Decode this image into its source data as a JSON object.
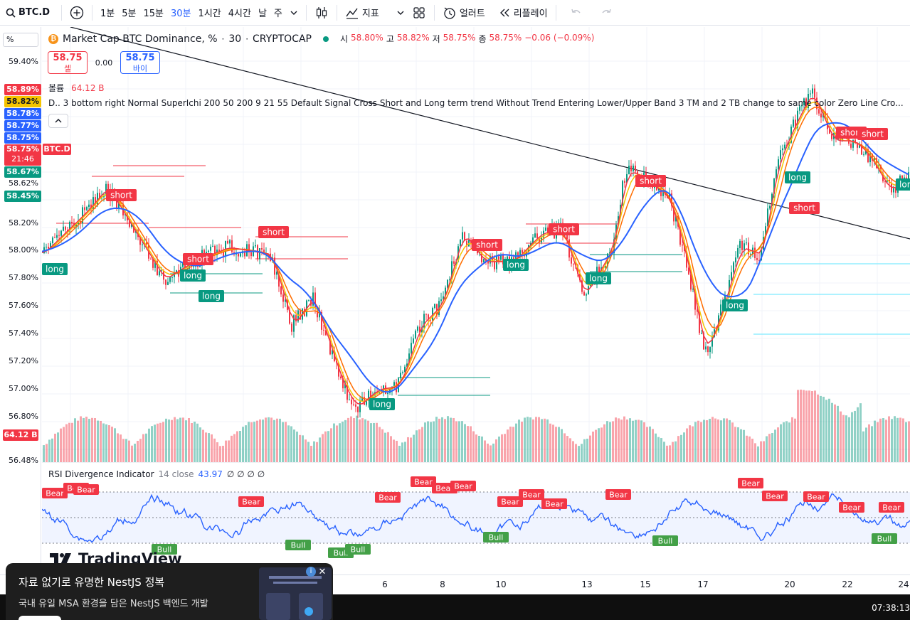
{
  "toolbar": {
    "symbol": "BTC.D",
    "add_label": "+",
    "intervals": [
      "1분",
      "5분",
      "15분",
      "30분",
      "1시간",
      "4시간",
      "날",
      "주"
    ],
    "active_interval": "30분",
    "indicators_label": "지표",
    "alert_label": "얼러트",
    "replay_label": "리플레이",
    "icons": [
      "search-icon",
      "add-symbol-icon",
      "chevron-down-icon",
      "candles-icon",
      "indicators-icon",
      "layout-grid-icon",
      "alert-icon",
      "replay-icon",
      "undo-icon",
      "redo-icon"
    ]
  },
  "legend": {
    "title": "Market Cap BTC Dominance, %",
    "interval": "30",
    "exchange": "CRYPTOCAP",
    "open_label": "시",
    "open": "58.80%",
    "high_label": "고",
    "high": "58.82%",
    "low_label": "저",
    "low": "58.75%",
    "close_label": "종",
    "close": "58.75%",
    "change": "−0.06 (−0.09%)",
    "sell_price": "58.75",
    "sell_label": "셀",
    "buy_price": "58.75",
    "buy_label": "바이",
    "spread": "0.00",
    "volume_label": "볼륨",
    "volume_value": "64.12 B",
    "indicator_text": "D.. 3 bottom right Normal SuperIchi 200 50 200 9 21 55 Default Signal Cross Short and Long term trend Without Trend Entering Lower/Upper Band 3 TM and 2 TB change to same color Zero Line Cro..."
  },
  "yaxis": {
    "unit_input": "%",
    "ticks": [
      "59.40%",
      "58.62%",
      "58.20%",
      "58.00%",
      "57.80%",
      "57.60%",
      "57.40%",
      "57.20%",
      "57.00%",
      "56.80%",
      "56.48%"
    ],
    "badges": [
      {
        "text": "58.89%",
        "color": "#f23645"
      },
      {
        "text": "58.82%",
        "color": "#f5c400",
        "text_color": "#131722"
      },
      {
        "text": "58.78%",
        "color": "#2962ff"
      },
      {
        "text": "58.77%",
        "color": "#2962ff"
      },
      {
        "text": "58.75%",
        "color": "#2962ff"
      },
      {
        "text": "58.75%",
        "color": "#f23645"
      },
      {
        "text": "21:46",
        "color": "#f23645"
      },
      {
        "text": "58.67%",
        "color": "#089981"
      },
      {
        "text": "58.45%",
        "color": "#089981"
      }
    ],
    "price_tag": "BTC.D",
    "volume_tag": "64.12 B"
  },
  "signals": {
    "short_label": "short",
    "long_label": "long",
    "bear_label": "Bear",
    "bull_label": "Bull"
  },
  "rsi": {
    "name": "RSI Divergence Indicator",
    "params": "14 close",
    "value": "43.97",
    "extra": "∅ ∅ ∅ ∅"
  },
  "time_axis": [
    "6",
    "8",
    "10",
    "13",
    "15",
    "17",
    "20",
    "22",
    "24"
  ],
  "watermark": "TradingView",
  "ad": {
    "title": "자료 없기로 유명한 NestJS 정복",
    "subtitle": "국내 유일 MSA 환경을 담은 NestJS 백엔드 개발",
    "info": "i",
    "close": "✕"
  },
  "clock": "07:38:13",
  "colors": {
    "up": "#089981",
    "down": "#f23645",
    "accent": "#2962ff"
  }
}
